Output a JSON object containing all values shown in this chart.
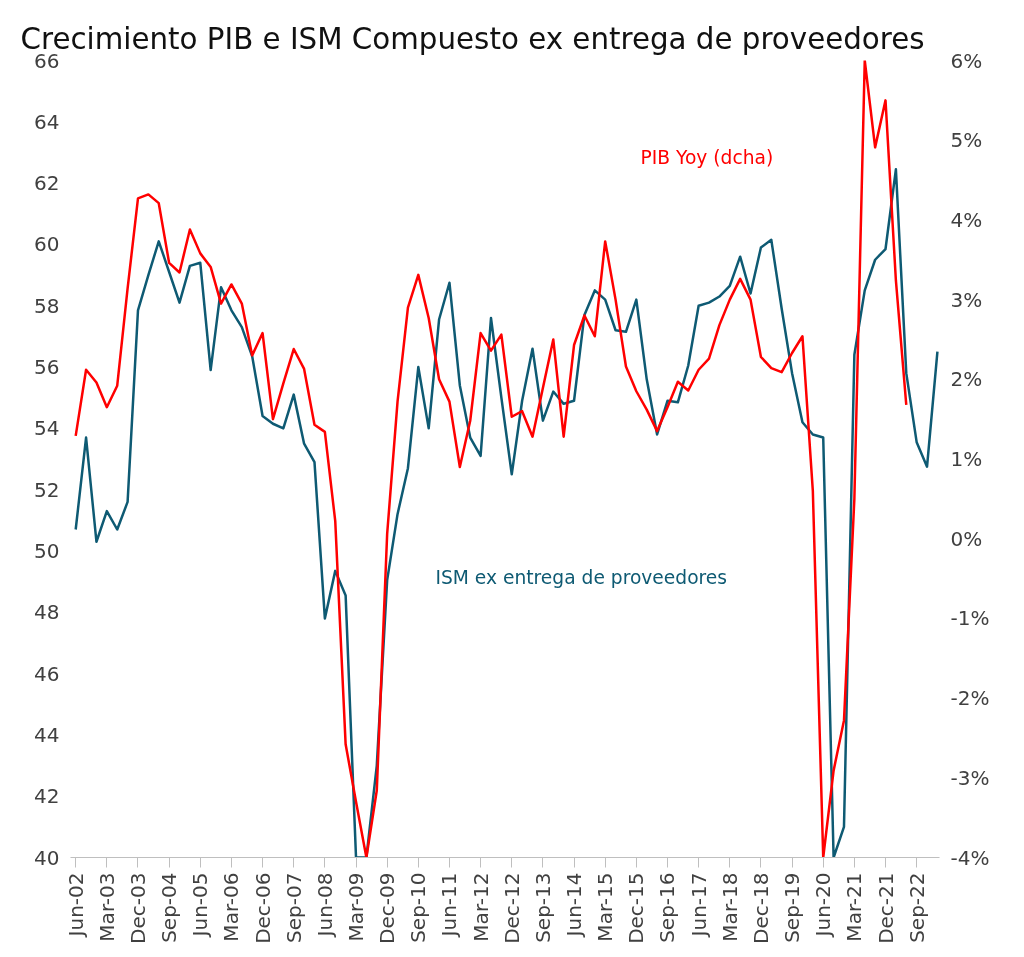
{
  "chart_data": {
    "type": "line",
    "title": "Crecimiento PIB e ISM Compuesto ex entrega de proveedores",
    "categories": [
      "Jun-02",
      null,
      null,
      "Mar-03",
      null,
      null,
      "Dec-03",
      null,
      null,
      "Sep-04",
      null,
      null,
      "Jun-05",
      null,
      null,
      "Mar-06",
      null,
      null,
      "Dec-06",
      null,
      null,
      "Sep-07",
      null,
      null,
      "Jun-08",
      null,
      null,
      "Mar-09",
      null,
      null,
      "Dec-09",
      null,
      null,
      "Sep-10",
      null,
      null,
      "Jun-11",
      null,
      null,
      "Mar-12",
      null,
      null,
      "Dec-12",
      null,
      null,
      "Sep-13",
      null,
      null,
      "Jun-14",
      null,
      null,
      "Mar-15",
      null,
      null,
      "Dec-15",
      null,
      null,
      "Sep-16",
      null,
      null,
      "Jun-17",
      null,
      null,
      "Mar-18",
      null,
      null,
      "Dec-18",
      null,
      null,
      "Sep-19",
      null,
      null,
      "Jun-20",
      null,
      null,
      "Mar-21",
      null,
      null,
      "Dec-21",
      null,
      null,
      "Sep-22",
      null,
      null
    ],
    "series": [
      {
        "name": "ISM ex entrega de proveedores",
        "color": "#0e5a73",
        "values": [
          50.7,
          53.7,
          50.3,
          51.3,
          50.7,
          51.6,
          57.85,
          59.0,
          60.1,
          59.1,
          58.1,
          59.3,
          59.4,
          55.9,
          58.6,
          57.85,
          57.3,
          56.35,
          54.4,
          54.15,
          54.0,
          55.1,
          53.5,
          52.9,
          47.8,
          49.35,
          48.55,
          40,
          40,
          43.0,
          49.05,
          51.2,
          52.7,
          56.0,
          54.0,
          57.55,
          58.75,
          55.4,
          53.7,
          53.1,
          57.6,
          55.0,
          52.5,
          54.9,
          56.6,
          54.25,
          55.2,
          54.8,
          54.9,
          57.7,
          58.5,
          58.2,
          57.2,
          57.15,
          58.2,
          55.6,
          53.8,
          54.9,
          54.85,
          56.05,
          58.0,
          58.1,
          58.3,
          58.65,
          59.6,
          58.4,
          59.9,
          60.15,
          57.9,
          55.8,
          54.2,
          53.8,
          53.7,
          40,
          41,
          56.4,
          58.5,
          59.5,
          59.85,
          62.45,
          55.8,
          53.55,
          52.75,
          56.5
        ]
      },
      {
        "name": "PIB Yoy (dcha)",
        "color": "#ff0000",
        "axis": "y2",
        "values": [
          1.29,
          2.12,
          1.96,
          1.65,
          1.92,
          3.14,
          4.27,
          4.32,
          4.21,
          3.46,
          3.34,
          3.88,
          3.58,
          3.41,
          2.95,
          3.19,
          2.95,
          2.3,
          2.58,
          1.5,
          1.95,
          2.38,
          2.13,
          1.43,
          1.34,
          0.22,
          -2.58,
          -3.3,
          -4.0,
          -3.16,
          0.06,
          1.72,
          2.9,
          3.31,
          2.77,
          2.0,
          1.72,
          0.9,
          1.48,
          2.58,
          2.36,
          2.56,
          1.53,
          1.6,
          1.28,
          1.89,
          2.5,
          1.28,
          2.43,
          2.8,
          2.54,
          3.73,
          3.0,
          2.16,
          1.85,
          1.62,
          1.35,
          1.65,
          1.97,
          1.86,
          2.12,
          2.26,
          2.68,
          3.0,
          3.26,
          3.0,
          2.28,
          2.14,
          2.09,
          2.33,
          2.54,
          0.6,
          -4.0,
          -2.91,
          -2.28,
          0.5,
          6.0,
          4.91,
          5.5,
          3.24,
          1.68,
          null,
          null,
          null
        ]
      }
    ],
    "ylim": [
      40,
      66
    ],
    "yticks": [
      40,
      42,
      44,
      46,
      48,
      50,
      52,
      54,
      56,
      58,
      60,
      62,
      64,
      66
    ],
    "y2lim": [
      -4,
      6
    ],
    "y2ticks": [
      {
        "value": -4,
        "label": "-4%"
      },
      {
        "value": -3,
        "label": "-3%"
      },
      {
        "value": -2,
        "label": "-2%"
      },
      {
        "value": -1,
        "label": "-1%"
      },
      {
        "value": 0,
        "label": "0%"
      },
      {
        "value": 1,
        "label": "1%"
      },
      {
        "value": 2,
        "label": "2%"
      },
      {
        "value": 3,
        "label": "3%"
      },
      {
        "value": 4,
        "label": "4%"
      },
      {
        "value": 5,
        "label": "5%"
      },
      {
        "value": 6,
        "label": "6%"
      }
    ],
    "grid": false,
    "legend": false
  }
}
